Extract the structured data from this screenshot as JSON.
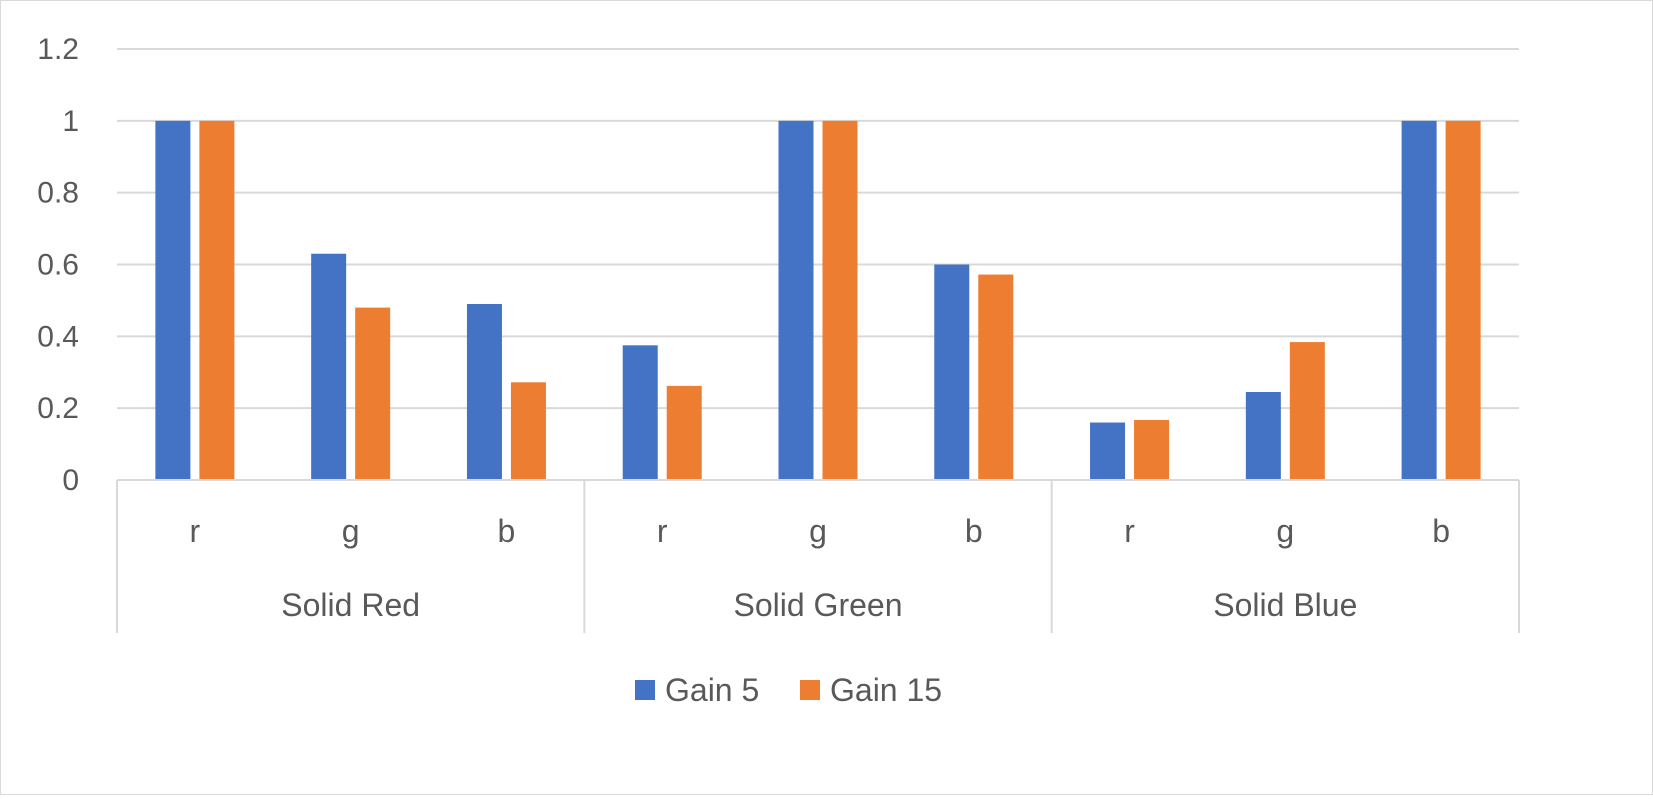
{
  "chart_data": {
    "type": "bar",
    "title": "",
    "xlabel": "",
    "ylabel": "",
    "ylim": [
      0,
      1.2
    ],
    "yticks": [
      "0",
      "0.2",
      "0.4",
      "0.6",
      "0.8",
      "1",
      "1.2"
    ],
    "grid": true,
    "legend": "bottom",
    "groups": [
      {
        "label": "Solid Red",
        "categories": [
          "r",
          "g",
          "b"
        ]
      },
      {
        "label": "Solid Green",
        "categories": [
          "r",
          "g",
          "b"
        ]
      },
      {
        "label": "Solid Blue",
        "categories": [
          "r",
          "g",
          "b"
        ]
      }
    ],
    "categories": [
      "r",
      "g",
      "b",
      "r",
      "g",
      "b",
      "r",
      "g",
      "b"
    ],
    "series": [
      {
        "name": "Gain 5",
        "color": "#4472C4",
        "values": [
          1.0,
          0.63,
          0.49,
          0.375,
          1.0,
          0.6,
          0.16,
          0.245,
          1.0
        ]
      },
      {
        "name": "Gain 15",
        "color": "#ED7D31",
        "values": [
          1.0,
          0.48,
          0.272,
          0.262,
          1.0,
          0.572,
          0.167,
          0.384,
          1.0
        ]
      }
    ]
  }
}
